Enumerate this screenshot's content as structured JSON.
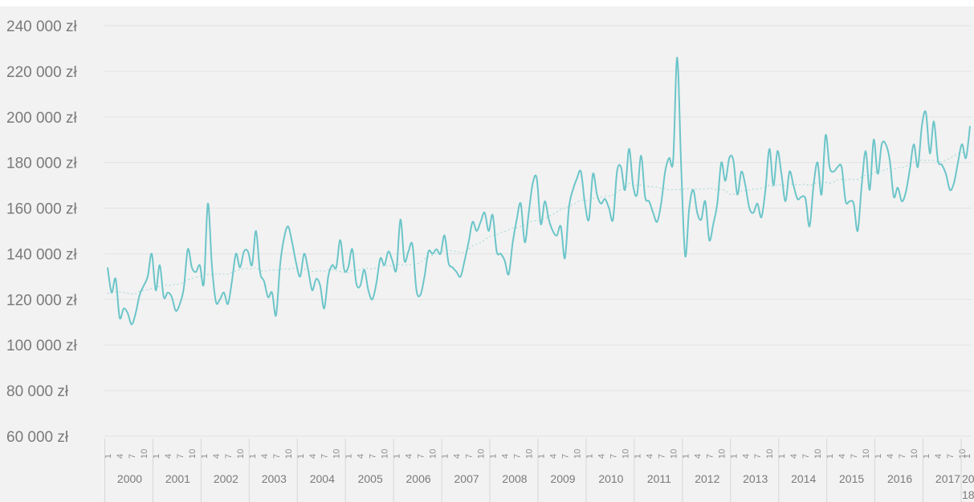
{
  "chart_data": {
    "type": "line",
    "title": "",
    "xlabel": "",
    "ylabel": "",
    "ylim": [
      60000,
      240000
    ],
    "y_ticks": [
      240000,
      220000,
      200000,
      180000,
      160000,
      140000,
      120000,
      100000,
      80000,
      60000
    ],
    "y_tick_labels": [
      "240 000 zł",
      "220 000 zł",
      "200 000 zł",
      "180 000 zł",
      "160 000 zł",
      "140 000 zł",
      "120 000 zł",
      "100 000 zł",
      "80 000 zł",
      "60 000 zł"
    ],
    "grid": "horizontal",
    "legend": "none",
    "colors": {
      "series": "#6cc5c9",
      "trend": "#9fd6d8",
      "grid": "#e3e3e3",
      "background": "#f2f2f2",
      "text": "#7a7a7a"
    },
    "month_tick_labels": [
      "1",
      "4",
      "7",
      "10"
    ],
    "year_labels": [
      "2000",
      "2001",
      "2002",
      "2003",
      "2004",
      "2005",
      "2006",
      "2007",
      "2008",
      "2009",
      "2010",
      "2011",
      "2012",
      "2013",
      "2014",
      "2015",
      "2016",
      "2017",
      "20",
      "18"
    ],
    "series": [
      {
        "values": [
          134000,
          123000,
          129000,
          112000,
          116000,
          114000,
          109000,
          114000,
          122000,
          126000,
          130000,
          140000,
          124000,
          135000,
          121000,
          123000,
          121000,
          115000,
          118000,
          125000,
          142000,
          134000,
          132000,
          135000,
          127000,
          162000,
          135000,
          119000,
          120000,
          123000,
          118000,
          128000,
          140000,
          134000,
          141000,
          141000,
          135000,
          150000,
          132000,
          128000,
          121000,
          123000,
          113000,
          135000,
          147000,
          152000,
          145000,
          136000,
          130000,
          140000,
          133000,
          124000,
          129000,
          126000,
          116000,
          130000,
          135000,
          134000,
          146000,
          133000,
          134000,
          142000,
          127000,
          126000,
          133000,
          124000,
          120000,
          127000,
          138000,
          135000,
          141000,
          137000,
          133000,
          155000,
          137000,
          141000,
          144000,
          124000,
          122000,
          130000,
          141000,
          140000,
          142000,
          140000,
          148000,
          136000,
          134000,
          132000,
          130000,
          137000,
          145000,
          154000,
          150000,
          154000,
          158000,
          150000,
          157000,
          141000,
          140000,
          137000,
          131000,
          145000,
          155000,
          162000,
          145000,
          158000,
          171000,
          173000,
          153000,
          163000,
          155000,
          150000,
          148000,
          152000,
          138000,
          160000,
          168000,
          173000,
          176000,
          162000,
          155000,
          175000,
          166000,
          162000,
          164000,
          160000,
          155000,
          176000,
          178000,
          168000,
          186000,
          170000,
          166000,
          183000,
          165000,
          163000,
          158000,
          154000,
          162000,
          176000,
          182000,
          181000,
          226000,
          178000,
          139000,
          160000,
          168000,
          158000,
          155000,
          163000,
          146000,
          153000,
          162000,
          180000,
          172000,
          182000,
          181000,
          166000,
          176000,
          170000,
          160000,
          158000,
          162000,
          156000,
          168000,
          186000,
          170000,
          185000,
          175000,
          163000,
          176000,
          170000,
          164000,
          165000,
          164000,
          152000,
          170000,
          180000,
          166000,
          192000,
          178000,
          176000,
          178000,
          178000,
          163000,
          163000,
          162000,
          150000,
          170000,
          185000,
          168000,
          190000,
          175000,
          188000,
          188000,
          181000,
          165000,
          169000,
          163000,
          167000,
          177000,
          188000,
          178000,
          196000,
          202000,
          184000,
          198000,
          181000,
          179000,
          175000,
          168000,
          171000,
          180000,
          188000,
          182000,
          196000
        ]
      }
    ]
  }
}
